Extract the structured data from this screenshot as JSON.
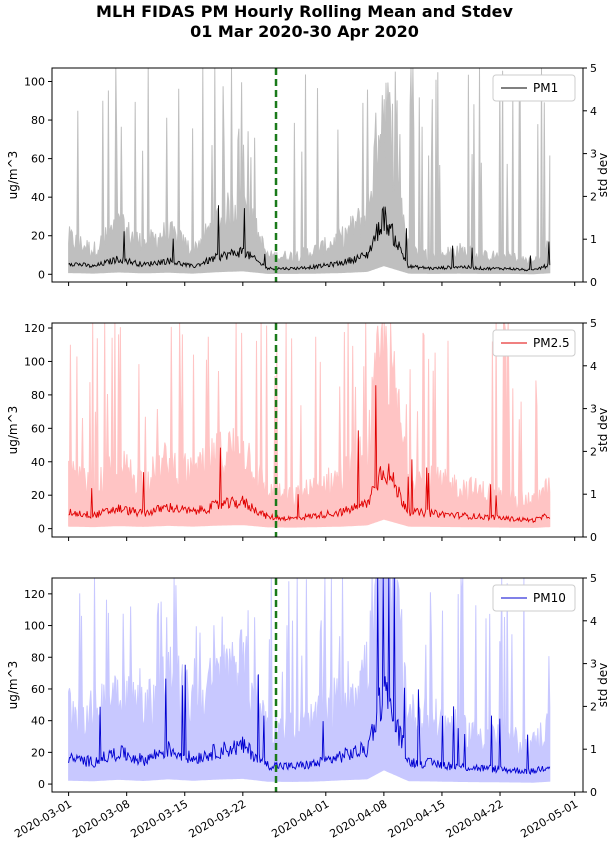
{
  "title": "MLH FIDAS PM Hourly Rolling Mean and Stdev",
  "subtitle": "01 Mar 2020-30 Apr 2020",
  "chart_data": [
    {
      "type": "line",
      "legend": "PM1",
      "legend_position": "top-right",
      "ylabel": "ug/m^3",
      "y2label": "std dev",
      "ylim": [
        -4,
        107
      ],
      "yticks": [
        "0",
        "20",
        "40",
        "60",
        "80",
        "100"
      ],
      "y2lim": [
        0,
        5
      ],
      "y2ticks": [
        "0",
        "1",
        "2",
        "3",
        "4",
        "5"
      ],
      "mean_color": "#000000",
      "std_color": "#bfbfbf",
      "vline_date": "2020-03-26",
      "vline_color": "#1a7a1a",
      "series": [
        {
          "name": "PM1",
          "x": [
            "2020-03-01",
            "2020-03-04",
            "2020-03-07",
            "2020-03-10",
            "2020-03-13",
            "2020-03-16",
            "2020-03-19",
            "2020-03-22",
            "2020-03-25",
            "2020-03-28",
            "2020-03-31",
            "2020-04-03",
            "2020-04-06",
            "2020-04-08",
            "2020-04-11",
            "2020-04-14",
            "2020-04-17",
            "2020-04-20",
            "2020-04-23",
            "2020-04-26",
            "2020-04-28"
          ],
          "y": [
            6,
            4,
            8,
            5,
            7,
            4,
            9,
            12,
            3,
            3,
            4,
            6,
            10,
            30,
            4,
            3,
            4,
            3,
            3,
            2,
            5
          ]
        }
      ]
    },
    {
      "type": "line",
      "legend": "PM2.5",
      "legend_position": "top-right",
      "ylabel": "ug/m^3",
      "y2label": "std dev",
      "ylim": [
        -5,
        123
      ],
      "yticks": [
        "0",
        "20",
        "40",
        "60",
        "80",
        "100",
        "120"
      ],
      "y2lim": [
        0,
        5
      ],
      "y2ticks": [
        "0",
        "1",
        "2",
        "3",
        "4",
        "5"
      ],
      "mean_color": "#e00000",
      "std_color": "#ffc4c4",
      "vline_date": "2020-03-26",
      "vline_color": "#1a7a1a",
      "series": [
        {
          "name": "PM2.5",
          "x": [
            "2020-03-01",
            "2020-03-04",
            "2020-03-07",
            "2020-03-10",
            "2020-03-13",
            "2020-03-16",
            "2020-03-19",
            "2020-03-22",
            "2020-03-25",
            "2020-03-28",
            "2020-03-31",
            "2020-04-03",
            "2020-04-06",
            "2020-04-08",
            "2020-04-11",
            "2020-04-14",
            "2020-04-17",
            "2020-04-20",
            "2020-04-23",
            "2020-04-26",
            "2020-04-28"
          ],
          "y": [
            10,
            8,
            12,
            9,
            13,
            10,
            14,
            16,
            7,
            6,
            8,
            10,
            15,
            38,
            10,
            9,
            8,
            7,
            6,
            5,
            8
          ]
        }
      ]
    },
    {
      "type": "line",
      "legend": "PM10",
      "legend_position": "top-right",
      "ylabel": "ug/m^3",
      "y2label": "std dev",
      "ylim": [
        -5,
        130
      ],
      "yticks": [
        "0",
        "20",
        "40",
        "60",
        "80",
        "100",
        "120"
      ],
      "y2lim": [
        0,
        5
      ],
      "y2ticks": [
        "0",
        "1",
        "2",
        "3",
        "4",
        "5"
      ],
      "mean_color": "#0000d0",
      "std_color": "#c8c8ff",
      "vline_date": "2020-03-26",
      "vline_color": "#1a7a1a",
      "xticks": [
        "2020-03-01",
        "2020-03-08",
        "2020-03-15",
        "2020-03-22",
        "2020-04-01",
        "2020-04-08",
        "2020-04-15",
        "2020-04-22",
        "2020-05-01"
      ],
      "series": [
        {
          "name": "PM10",
          "x": [
            "2020-03-01",
            "2020-03-04",
            "2020-03-07",
            "2020-03-10",
            "2020-03-13",
            "2020-03-16",
            "2020-03-19",
            "2020-03-22",
            "2020-03-25",
            "2020-03-28",
            "2020-03-31",
            "2020-04-03",
            "2020-04-06",
            "2020-04-08",
            "2020-04-11",
            "2020-04-14",
            "2020-04-17",
            "2020-04-20",
            "2020-04-23",
            "2020-04-26",
            "2020-04-28"
          ],
          "y": [
            16,
            14,
            20,
            15,
            22,
            16,
            21,
            24,
            12,
            11,
            13,
            18,
            22,
            60,
            14,
            13,
            11,
            10,
            9,
            8,
            12
          ]
        }
      ]
    }
  ]
}
